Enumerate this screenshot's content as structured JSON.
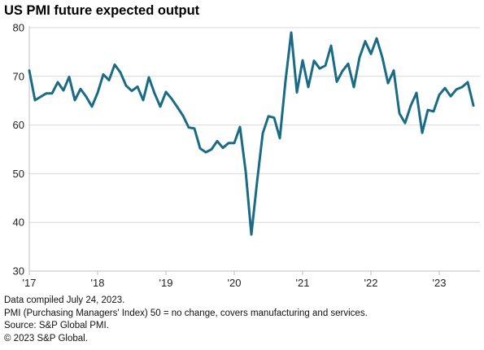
{
  "chart_data": {
    "type": "line",
    "title": "US PMI future expected output",
    "xlabel": "",
    "ylabel": "",
    "ylim": [
      30,
      80
    ],
    "yticks": [
      30,
      40,
      50,
      60,
      70,
      80
    ],
    "xtick_labels": [
      "'17",
      "'18",
      "'19",
      "'20",
      "'21",
      "'22",
      "'23"
    ],
    "x_start": "2017-01",
    "grid": "horizontal",
    "line_color": "#1a6b86",
    "series": [
      {
        "name": "",
        "values": [
          71.2,
          65.1,
          65.8,
          66.5,
          66.5,
          68.8,
          67.1,
          69.9,
          65.1,
          67.4,
          65.8,
          63.8,
          66.6,
          70.4,
          69.2,
          72.4,
          70.8,
          68.1,
          67.0,
          67.9,
          65.1,
          69.8,
          66.5,
          63.8,
          66.8,
          65.4,
          63.7,
          61.9,
          59.5,
          59.3,
          55.2,
          54.4,
          55.0,
          56.7,
          55.3,
          56.3,
          56.3,
          59.6,
          50.5,
          37.5,
          48.3,
          58.3,
          61.8,
          61.5,
          57.3,
          69.1,
          79.0,
          66.7,
          73.3,
          67.8,
          73.2,
          71.6,
          72.2,
          76.3,
          68.9,
          71.1,
          72.6,
          67.8,
          73.9,
          77.2,
          74.6,
          77.8,
          73.9,
          68.6,
          71.2,
          62.4,
          60.4,
          64.0,
          66.6,
          58.4,
          63.1,
          62.8,
          66.2,
          67.6,
          65.9,
          67.3,
          67.8,
          68.8,
          64.0
        ]
      }
    ]
  },
  "footnotes": {
    "line1": "Data compiled July 24, 2023.",
    "line2": "PMI (Purchasing Managers' Index) 50 =  no change, covers manufacturing and services.",
    "line3": "Source: S&P Global PMI.",
    "line4": "© 2023 S&P Global."
  }
}
